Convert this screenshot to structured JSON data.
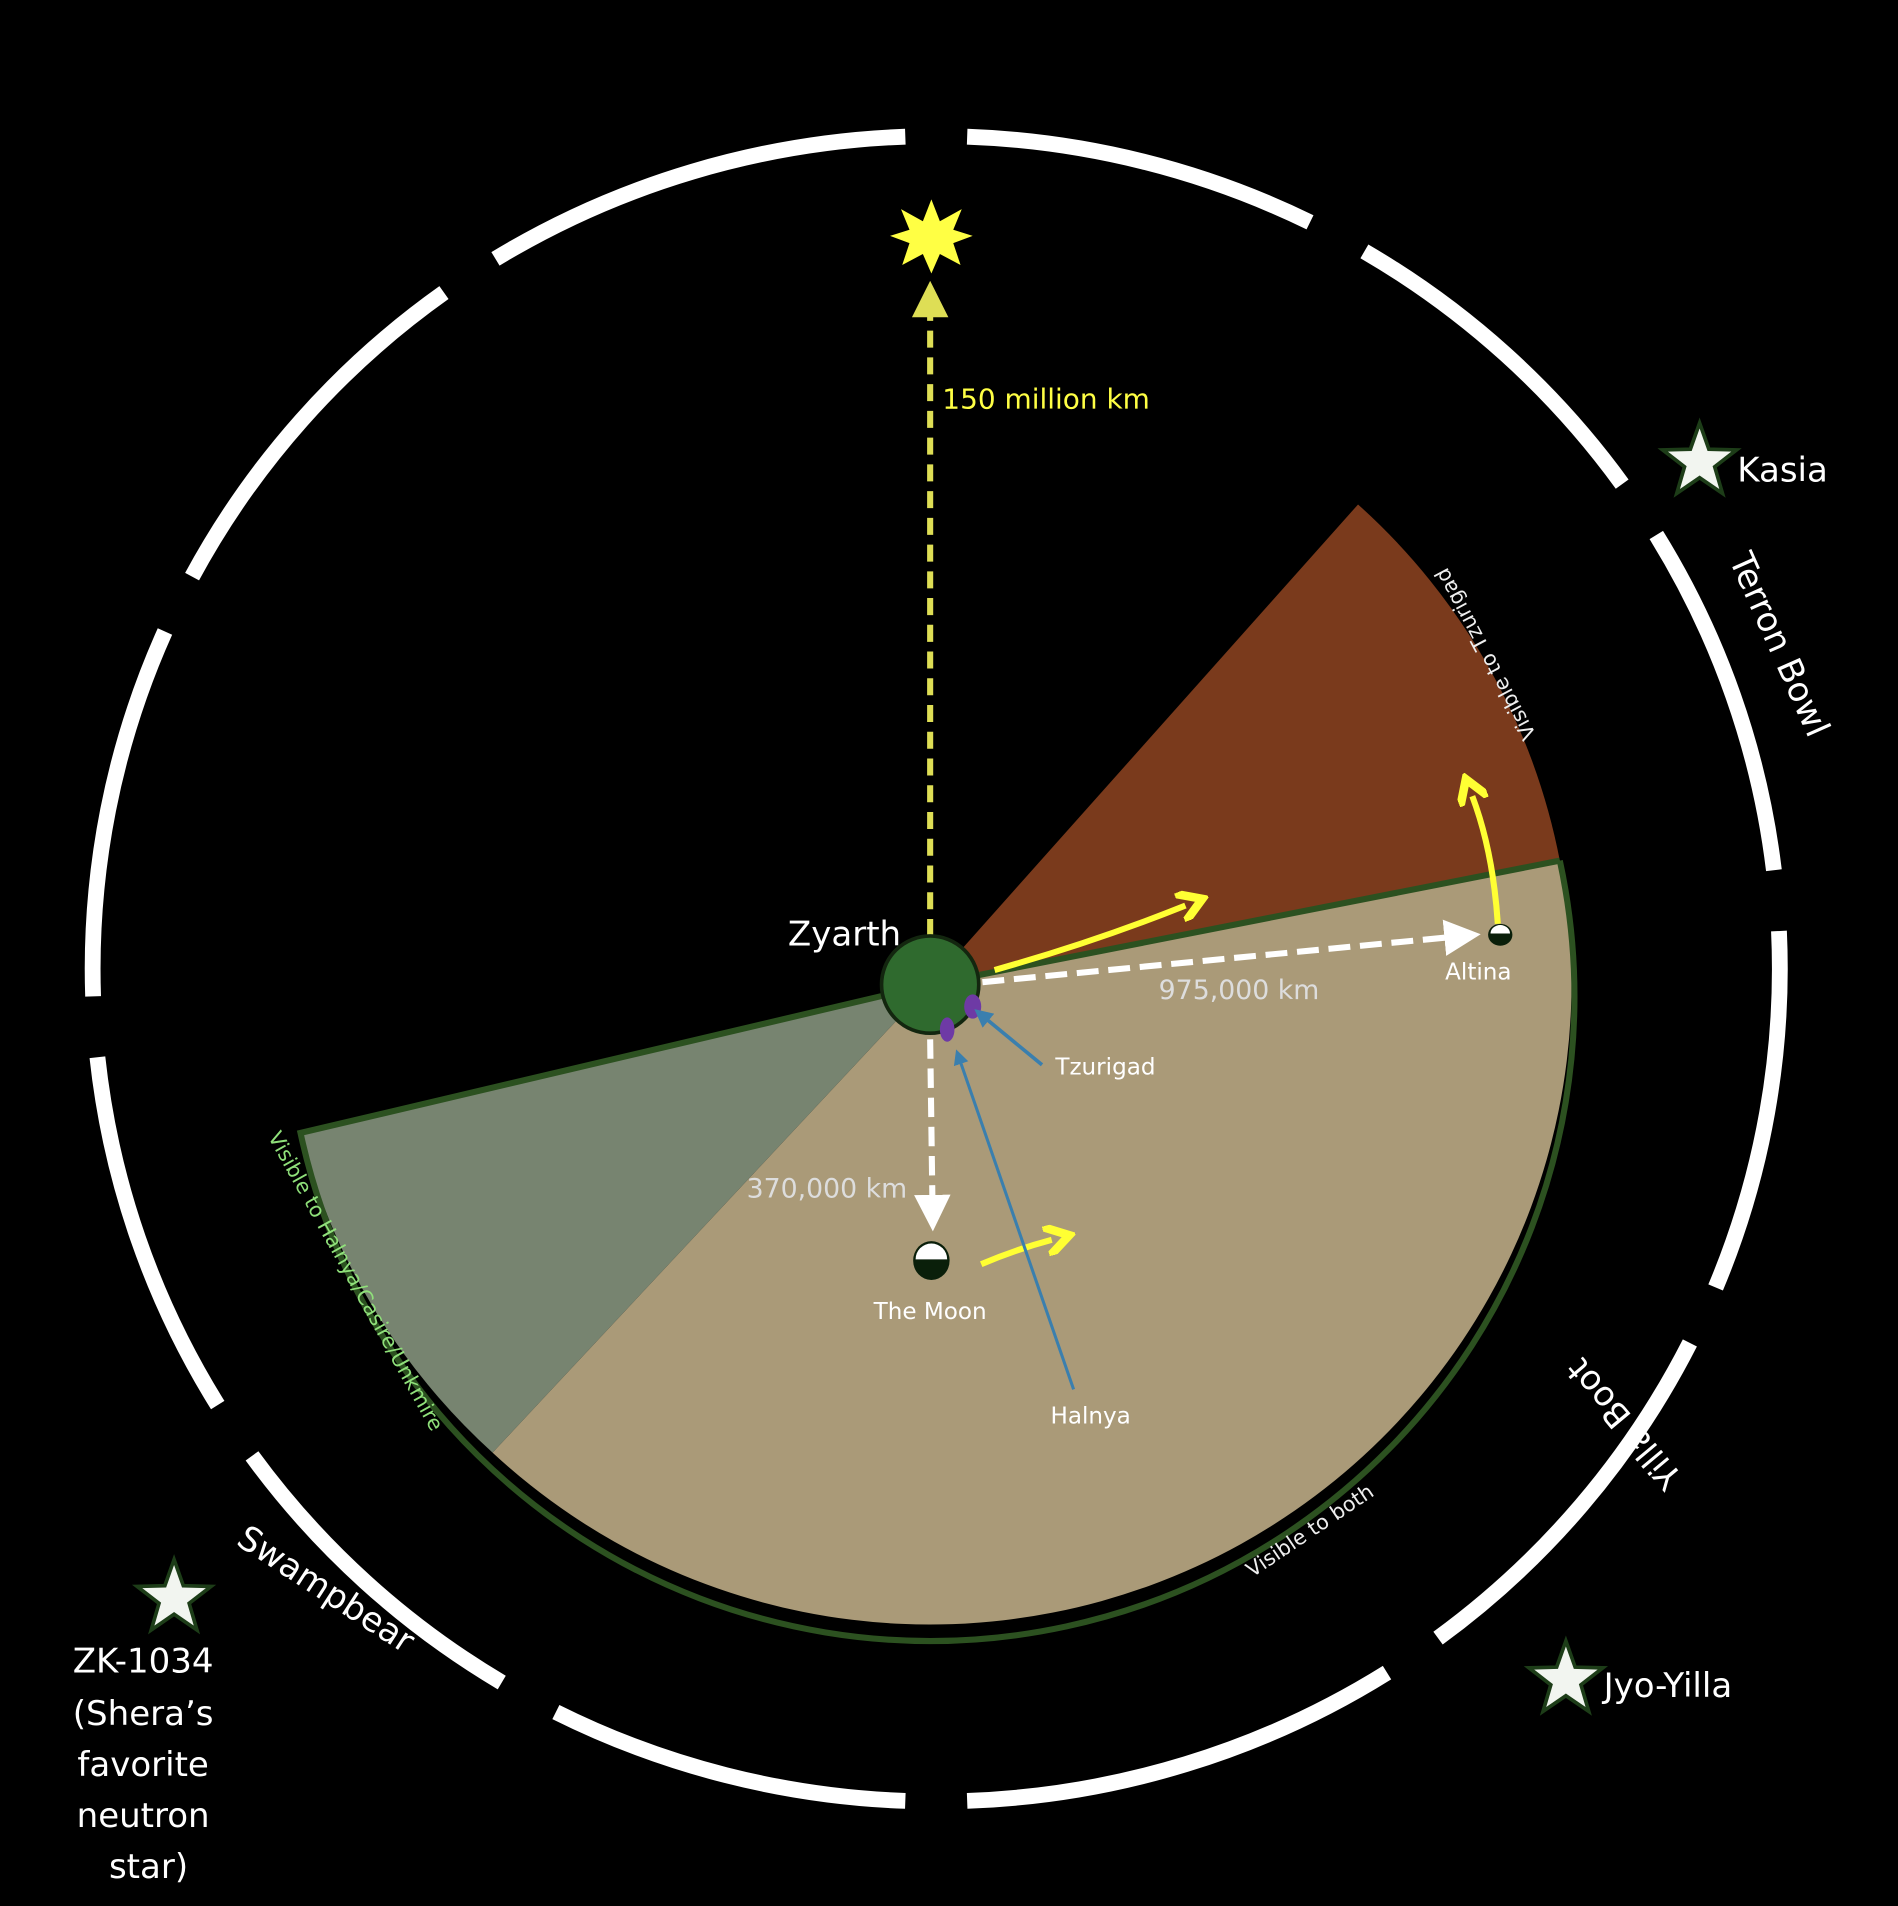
{
  "colors": {
    "background": "#000000",
    "ring": "#ffffff",
    "zyarth": "#2f6a2e",
    "zyarth_border": "#13260f",
    "tzurigad_sector": "#7a3a1c",
    "both_sector": "#aa9a78",
    "halnya_sector": "#778470",
    "sector_border": "#2c5120",
    "sun": "#ffff44",
    "sun_arrow": "#dede55",
    "motion_arrow": "#ffff33",
    "pointer": "#3a7fae",
    "city": "#6e3aa5",
    "label_green": "#8fe07a"
  },
  "sun": {
    "icon": "eight-point-star-icon",
    "distance_label": "150 million km"
  },
  "zyarth": {
    "label": "Zyarth"
  },
  "moon": {
    "label": "The Moon",
    "distance_label": "370,000 km"
  },
  "altina": {
    "label": "Altina",
    "distance_label": "975,000 km"
  },
  "cities": {
    "tzurigad": "Tzurigad",
    "halnya": "Halnya"
  },
  "sectors": {
    "tzurigad": "Visible to Tzurigad",
    "both": "Visible to both",
    "halnya": "Visible to Halnya/Casire/Unkmire"
  },
  "constellations": {
    "terron_bowl": "Terron Bowl",
    "yilla_boot": "Yilla Boot",
    "swampbear": "Swampbear"
  },
  "stars": {
    "kasia": "Kasia",
    "jyo_yilla": "Jyo-Yilla",
    "zk": [
      "ZK-1034",
      "(Shera’s",
      "favorite",
      "neutron",
      "star)"
    ]
  }
}
